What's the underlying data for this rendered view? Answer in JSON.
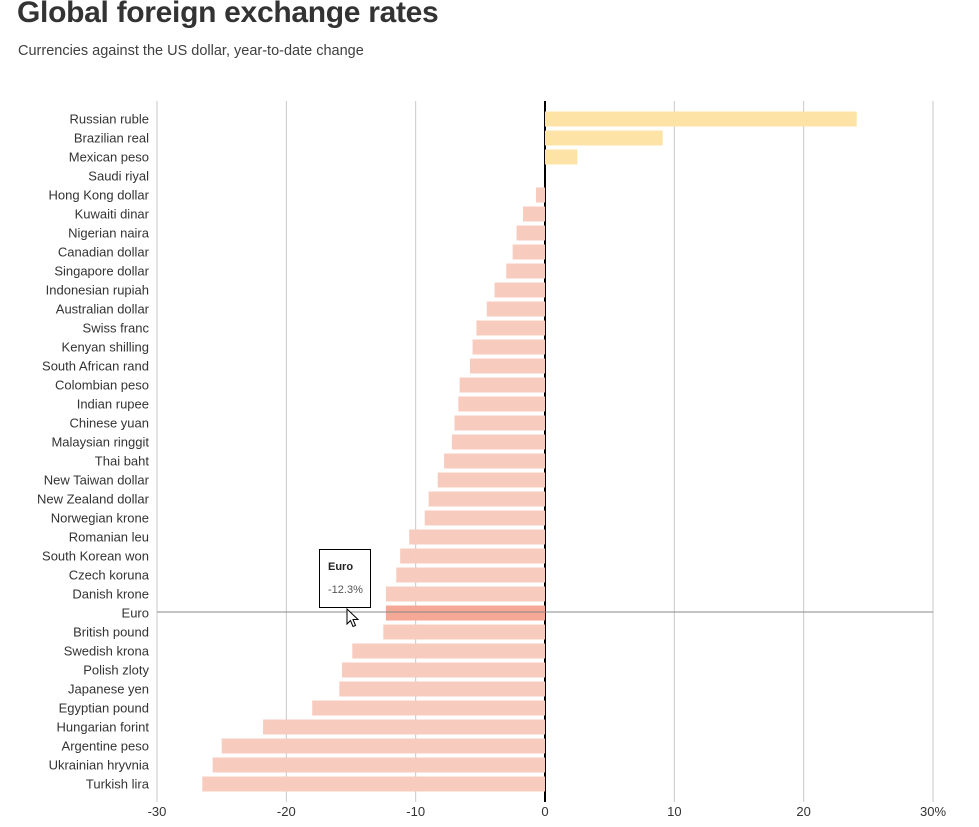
{
  "header": {
    "title": "Global foreign exchange rates",
    "subtitle": "Currencies against the US dollar, year-to-date change"
  },
  "tooltip": {
    "name": "Euro",
    "value": "-12.3%"
  },
  "colors": {
    "positive": "#fde4a6",
    "negative": "#f8cbbf",
    "highlight": "#f5a896",
    "zero_line": "#000000",
    "grid": "#c8c8c8",
    "crosshair": "#888888"
  },
  "chart_data": {
    "type": "bar",
    "orientation": "horizontal",
    "title": "Global foreign exchange rates",
    "subtitle": "Currencies against the US dollar, year-to-date change",
    "xlabel": "",
    "ylabel": "",
    "unit": "%",
    "xlim": [
      -30,
      30
    ],
    "xticks": [
      -30,
      -20,
      -10,
      0,
      10,
      20,
      30
    ],
    "xtick_labels": [
      "-30",
      "-20",
      "-10",
      "0",
      "10",
      "20",
      "30%"
    ],
    "grid": true,
    "highlighted": "Euro",
    "categories": [
      "Russian ruble",
      "Brazilian real",
      "Mexican peso",
      "Saudi riyal",
      "Hong Kong dollar",
      "Kuwaiti dinar",
      "Nigerian naira",
      "Canadian dollar",
      "Singapore dollar",
      "Indonesian rupiah",
      "Australian dollar",
      "Swiss franc",
      "Kenyan shilling",
      "South African rand",
      "Colombian peso",
      "Indian rupee",
      "Chinese yuan",
      "Malaysian ringgit",
      "Thai baht",
      "New Taiwan dollar",
      "New Zealand dollar",
      "Norwegian krone",
      "Romanian leu",
      "South Korean won",
      "Czech koruna",
      "Danish krone",
      "Euro",
      "British pound",
      "Swedish krona",
      "Polish zloty",
      "Japanese yen",
      "Egyptian pound",
      "Hungarian forint",
      "Argentine peso",
      "Ukrainian hryvnia",
      "Turkish lira"
    ],
    "values": [
      24.1,
      9.1,
      2.5,
      0.0,
      -0.7,
      -1.7,
      -2.2,
      -2.5,
      -3.0,
      -3.9,
      -4.5,
      -5.3,
      -5.6,
      -5.8,
      -6.6,
      -6.7,
      -7.0,
      -7.2,
      -7.8,
      -8.3,
      -9.0,
      -9.3,
      -10.5,
      -11.2,
      -11.5,
      -12.3,
      -12.3,
      -12.5,
      -14.9,
      -15.7,
      -15.9,
      -18.0,
      -21.8,
      -25.0,
      -25.7,
      -26.5
    ]
  }
}
